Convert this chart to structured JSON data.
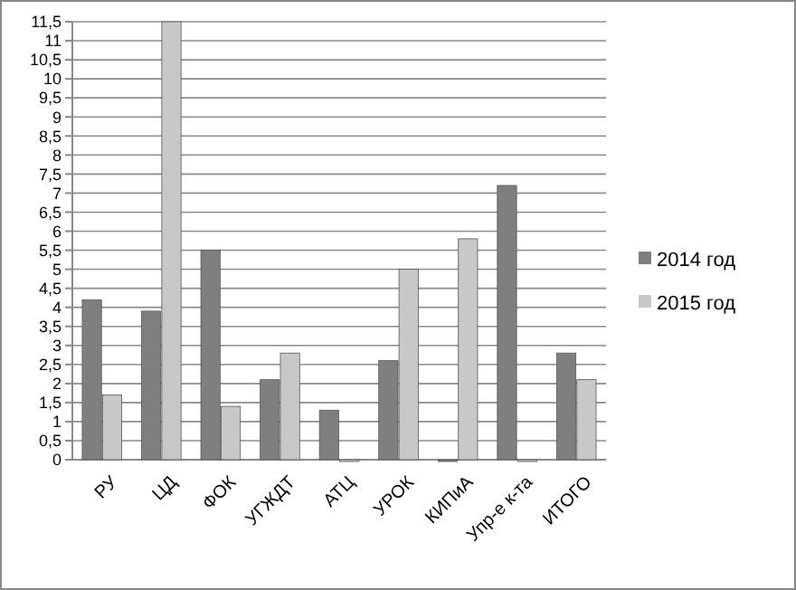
{
  "chart_data": {
    "type": "bar",
    "categories": [
      "РУ",
      "ЦД",
      "ФОК",
      "УГЖДТ",
      "АТЦ",
      "УРОК",
      "КИПиА",
      "Упр-е к-та",
      "ИТОГО"
    ],
    "series": [
      {
        "name": "2014 год",
        "color": "#7f7f7f",
        "values": [
          4.2,
          3.9,
          5.5,
          2.1,
          1.3,
          2.6,
          0,
          7.2,
          2.8
        ]
      },
      {
        "name": "2015 год",
        "color": "#c8c8c8",
        "values": [
          1.7,
          11.5,
          1.4,
          2.8,
          0,
          5,
          5.8,
          0,
          2.1
        ]
      }
    ],
    "ylim": [
      0,
      11.5
    ],
    "yticks": [
      0,
      {
        "value": 0.5,
        "label": "0,5"
      },
      1,
      {
        "value": 1.5,
        "label": "1,5"
      },
      2,
      {
        "value": 2.5,
        "label": "2,5"
      },
      3,
      {
        "value": 3.5,
        "label": "3,5"
      },
      4,
      {
        "value": 4.5,
        "label": "4,5"
      },
      5,
      {
        "value": 5.5,
        "label": "5,5"
      },
      6,
      {
        "value": 6.5,
        "label": "6,5"
      },
      7,
      {
        "value": 7.5,
        "label": "7,5"
      },
      8,
      {
        "value": 8.5,
        "label": "8,5"
      },
      9,
      {
        "value": 9.5,
        "label": "9,5"
      },
      10,
      {
        "value": 10.5,
        "label": "10,5"
      },
      11,
      {
        "value": 11.5,
        "label": "11,5"
      }
    ],
    "grid": true,
    "legend": "right"
  }
}
